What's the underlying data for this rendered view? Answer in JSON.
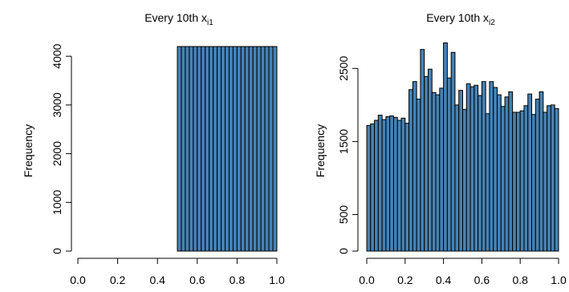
{
  "chart_data": [
    {
      "type": "bar",
      "title": "Every 10th x",
      "title_subscript": "i1",
      "xlabel": "",
      "ylabel": "Frequency",
      "xlim": [
        0.0,
        1.0
      ],
      "ylim": [
        0,
        4200
      ],
      "xticks": [
        "0.0",
        "0.2",
        "0.4",
        "0.6",
        "0.8",
        "1.0"
      ],
      "yticks": [
        "0",
        "1000",
        "2000",
        "3000",
        "4000"
      ],
      "bin_width": 0.02,
      "x_start": 0.0,
      "values": [
        0,
        0,
        0,
        0,
        0,
        0,
        0,
        0,
        0,
        0,
        0,
        0,
        0,
        0,
        0,
        0,
        0,
        0,
        0,
        0,
        0,
        0,
        0,
        0,
        0,
        4200,
        4200,
        4200,
        4200,
        4200,
        4200,
        4200,
        4200,
        4200,
        4200,
        4200,
        4200,
        4200,
        4200,
        4200,
        4200,
        4200,
        4200,
        4200,
        4200,
        4200,
        4200,
        4200,
        4200,
        4200
      ],
      "bar_color": "#4682B4",
      "grid": false
    },
    {
      "type": "bar",
      "title": "Every 10th x",
      "title_subscript": "i2",
      "xlabel": "",
      "ylabel": "Frequency",
      "xlim": [
        0.0,
        1.0
      ],
      "ylim": [
        0,
        2800
      ],
      "xticks": [
        "0.0",
        "0.2",
        "0.4",
        "0.6",
        "0.8",
        "1.0"
      ],
      "yticks": [
        "0",
        "500",
        "1500",
        "2500"
      ],
      "bin_width": 0.02,
      "x_start": 0.0,
      "values": [
        1720,
        1740,
        1790,
        1860,
        1800,
        1840,
        1850,
        1830,
        1790,
        1820,
        1750,
        2210,
        2320,
        2080,
        2760,
        2390,
        2490,
        2170,
        2140,
        2230,
        2850,
        2370,
        2720,
        2000,
        2200,
        1940,
        2290,
        2250,
        2270,
        2130,
        2320,
        1880,
        2320,
        2240,
        2140,
        1980,
        2110,
        2180,
        1900,
        1900,
        1920,
        1990,
        2150,
        1870,
        2080,
        2180,
        1900,
        1990,
        2000,
        1950
      ],
      "bar_color": "#4682B4",
      "grid": false
    }
  ]
}
